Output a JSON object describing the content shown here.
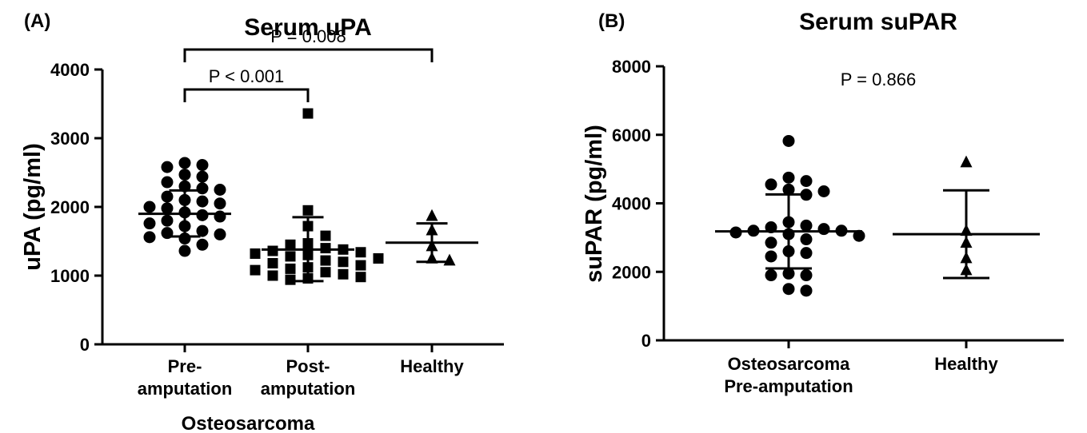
{
  "panel_labels": {
    "a": "(A)",
    "b": "(B)"
  },
  "chart_data": [
    {
      "type": "scatter",
      "title": "Serum uPA",
      "xlabel": "Osteosarcoma",
      "ylabel": "uPA (pg/ml)",
      "ylim": [
        0,
        4000
      ],
      "yticks": [
        "0",
        "1000",
        "2000",
        "3000",
        "4000"
      ],
      "yticks_values": [
        0,
        1000,
        2000,
        3000,
        4000
      ],
      "grid": false,
      "groups": [
        {
          "name_lines": [
            "Pre-",
            "amputation"
          ],
          "marker": "circle",
          "mean": 1900,
          "sd_low": 1570,
          "sd_high": 2240,
          "values": [
            2640,
            2610,
            2580,
            2470,
            2440,
            2360,
            2300,
            2270,
            2250,
            2150,
            2100,
            2080,
            2050,
            2000,
            1980,
            1920,
            1880,
            1860,
            1800,
            1760,
            1720,
            1650,
            1620,
            1600,
            1560,
            1540,
            1450,
            1360
          ]
        },
        {
          "name_lines": [
            "Post-",
            "amputation"
          ],
          "marker": "square",
          "mean": 1380,
          "sd_low": 920,
          "sd_high": 1850,
          "values": [
            3360,
            1950,
            1720,
            1580,
            1470,
            1450,
            1400,
            1380,
            1360,
            1340,
            1320,
            1300,
            1280,
            1250,
            1220,
            1200,
            1180,
            1150,
            1120,
            1100,
            1080,
            1050,
            1020,
            1000,
            980,
            960,
            940
          ]
        },
        {
          "name_lines": [
            "Healthy"
          ],
          "marker": "triangle",
          "mean": 1480,
          "sd_low": 1200,
          "sd_high": 1760,
          "values": [
            1870,
            1660,
            1430,
            1250,
            1220
          ]
        }
      ],
      "comparisons": [
        {
          "label": "P < 0.001",
          "from": 0,
          "to": 1,
          "level": 0
        },
        {
          "label": "P = 0.008",
          "from": 0,
          "to": 2,
          "level": 1
        }
      ]
    },
    {
      "type": "scatter",
      "title": "Serum suPAR",
      "xlabel": "",
      "ylabel": "suPAR (pg/ml)",
      "ylim": [
        0,
        8000
      ],
      "yticks": [
        "0",
        "2000",
        "4000",
        "6000",
        "8000"
      ],
      "yticks_values": [
        0,
        2000,
        4000,
        6000,
        8000
      ],
      "grid": false,
      "annotation": "P = 0.866",
      "groups": [
        {
          "name_lines": [
            "Osteosarcoma",
            "Pre-amputation"
          ],
          "marker": "circle",
          "mean": 3180,
          "sd_low": 2100,
          "sd_high": 4260,
          "values": [
            5820,
            4750,
            4650,
            4550,
            4400,
            4350,
            4250,
            3450,
            3350,
            3300,
            3250,
            3200,
            3200,
            3150,
            3100,
            3050,
            2950,
            2850,
            2600,
            2550,
            2450,
            1950,
            1900,
            1900,
            1500,
            1450
          ]
        },
        {
          "name_lines": [
            "Healthy"
          ],
          "marker": "triangle",
          "mean": 3100,
          "sd_low": 1820,
          "sd_high": 4380,
          "values": [
            5200,
            3200,
            2850,
            2400,
            2050
          ]
        }
      ]
    }
  ]
}
